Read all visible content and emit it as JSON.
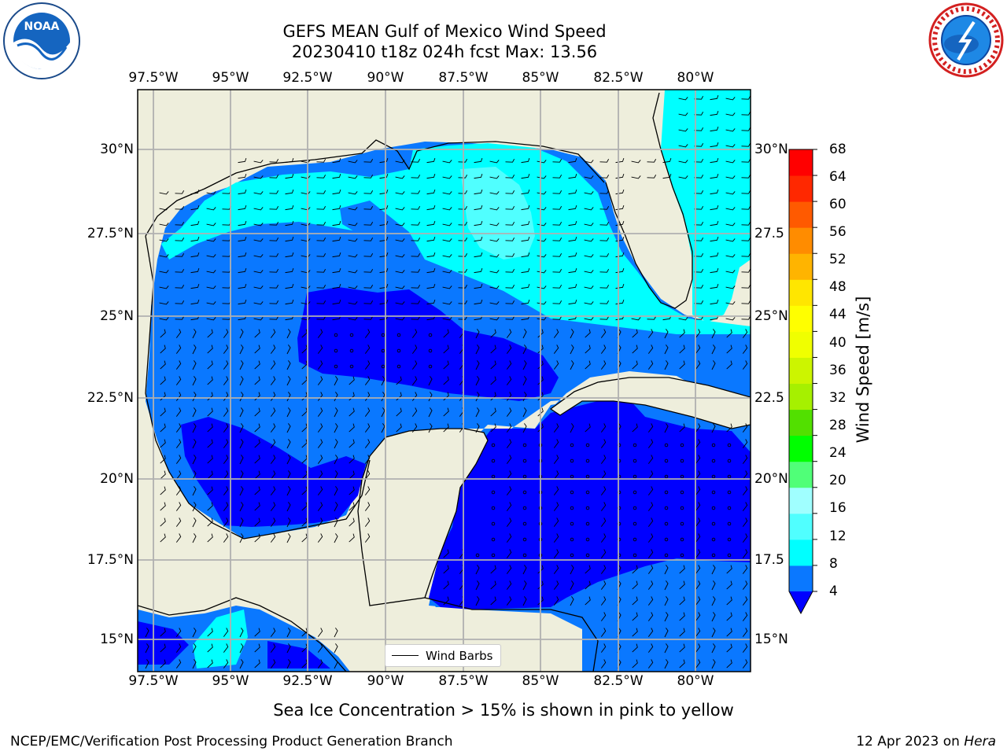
{
  "title_line1": "GEFS MEAN Gulf of Mexico Wind Speed",
  "title_line2": "20230410 t18z 024h fcst   Max: 13.56",
  "lon_ticks": [
    "97.5°W",
    "95°W",
    "92.5°W",
    "90°W",
    "87.5°W",
    "85°W",
    "82.5°W",
    "80°W"
  ],
  "lat_ticks_left": [
    "30°N",
    "27.5°N",
    "25°N",
    "22.5°N",
    "20°N",
    "17.5°N",
    "15°N"
  ],
  "lat_ticks_right": [
    "30°N",
    "27.5",
    "25°N",
    "22.5",
    "20°N",
    "17.5",
    "15°N"
  ],
  "colorbar": {
    "label": "Wind Speed [m/s]",
    "ticks": [
      "68",
      "64",
      "60",
      "56",
      "52",
      "48",
      "44",
      "40",
      "36",
      "32",
      "28",
      "24",
      "20",
      "16",
      "12",
      "8",
      "4"
    ],
    "colors_low_to_high": [
      "#0000ff",
      "#0a78ff",
      "#00ffff",
      "#50ffff",
      "#a0ffff",
      "#50ff78",
      "#00ff00",
      "#52e000",
      "#a6f000",
      "#ccf500",
      "#f0ff00",
      "#ffff00",
      "#ffe600",
      "#ffb400",
      "#ff8c00",
      "#ff5a00",
      "#ff2800",
      "#ff0000"
    ]
  },
  "legend_label": "Wind Barbs",
  "caption": "Sea Ice Concentration > 15% is shown in pink to yellow",
  "footer_left": "NCEP/EMC/Verification Post Processing Product Generation Branch",
  "footer_date": "12 Apr 2023 on ",
  "footer_host": "Hera",
  "logo_left_text": "NOAA",
  "colors": {
    "land": "#eeeedc",
    "grid": "#b0b0b0",
    "wind_4_8": "#0a78ff",
    "wind_0_4": "#0000ff",
    "wind_8_12": "#00ffff",
    "wind_12_16": "#50ffff"
  }
}
